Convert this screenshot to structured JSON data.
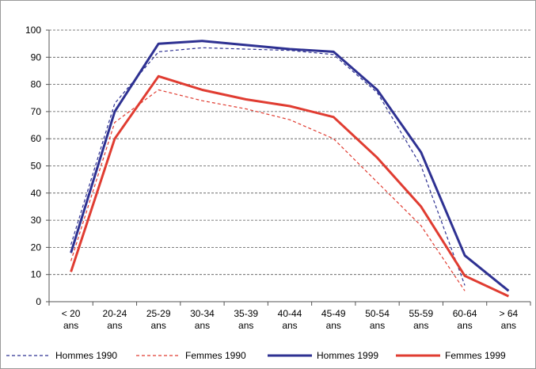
{
  "chart_data": {
    "type": "line",
    "title": "",
    "xlabel": "",
    "ylabel": "",
    "ylim": [
      0,
      100
    ],
    "yticks": [
      "0",
      "10",
      "20",
      "30",
      "40",
      "50",
      "60",
      "70",
      "80",
      "90",
      "100"
    ],
    "grid": "horizontal dashed",
    "legend_position": "bottom",
    "categories": [
      [
        "< 20",
        "ans"
      ],
      [
        "20-24",
        "ans"
      ],
      [
        "25-29",
        "ans"
      ],
      [
        "30-34",
        "ans"
      ],
      [
        "35-39",
        "ans"
      ],
      [
        "40-44",
        "ans"
      ],
      [
        "45-49",
        "ans"
      ],
      [
        "50-54",
        "ans"
      ],
      [
        "55-59",
        "ans"
      ],
      [
        "60-64",
        "ans"
      ],
      [
        "> 64",
        "ans"
      ]
    ],
    "series": [
      {
        "name": "Hommes 1990",
        "color": "#2e3192",
        "style": "dashed",
        "values": [
          21,
          73,
          92,
          93.5,
          93,
          92.5,
          91,
          77,
          50,
          6,
          null
        ]
      },
      {
        "name": "Femmes 1990",
        "color": "#e03c31",
        "style": "dashed",
        "values": [
          15,
          66,
          78,
          74,
          71,
          67,
          60,
          44,
          28,
          4,
          null
        ]
      },
      {
        "name": "Hommes 1999",
        "color": "#2e3192",
        "style": "solid",
        "values": [
          18,
          70,
          95,
          96,
          94.5,
          93,
          92,
          78,
          55,
          17,
          4
        ]
      },
      {
        "name": "Femmes 1999",
        "color": "#e03c31",
        "style": "solid",
        "values": [
          11,
          60,
          83,
          78,
          74.5,
          72,
          68,
          53,
          35,
          9.5,
          2
        ]
      }
    ]
  }
}
